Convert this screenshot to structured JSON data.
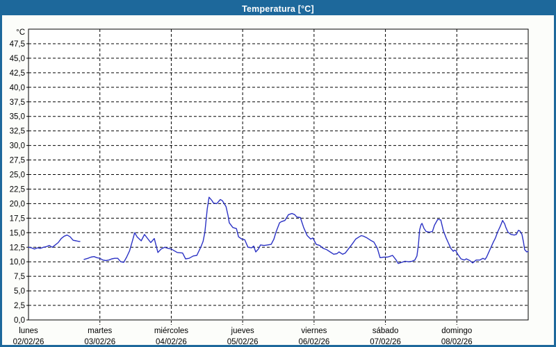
{
  "window": {
    "title": "Temperatura [°C]"
  },
  "colors": {
    "titlebar_bg": "#1D689B",
    "titlebar_text": "#FFFFFF",
    "frame": "#1D689B",
    "content_bg": "#FCFDFA",
    "plot_bg": "#FFFFFF",
    "plot_border": "#000000",
    "grid": "#000000",
    "tick_label": "#000000",
    "series_line": "#2A31C4"
  },
  "chart_data": {
    "type": "line",
    "title": "Temperatura [°C]",
    "y_axis": {
      "unit_label": "°C",
      "min": 0,
      "max": 50,
      "tick_step": 2.5,
      "tick_labels": [
        "0,0",
        "2,5",
        "5,0",
        "7,5",
        "10,0",
        "12,5",
        "15,0",
        "17,5",
        "20,0",
        "22,5",
        "25,0",
        "27,5",
        "30,0",
        "32,5",
        "35,0",
        "37,5",
        "40,0",
        "42,5",
        "45,0",
        "47,5"
      ],
      "grid": "dashed"
    },
    "x_axis": {
      "hours_total": 168,
      "hours_per_day": 24,
      "grid": "dashed",
      "days": [
        {
          "name": "lunes",
          "date": "02/02/26"
        },
        {
          "name": "martes",
          "date": "03/02/26"
        },
        {
          "name": "miércoles",
          "date": "04/02/26"
        },
        {
          "name": "jueves",
          "date": "05/02/26"
        },
        {
          "name": "viernes",
          "date": "06/02/26"
        },
        {
          "name": "sábado",
          "date": "07/02/26"
        },
        {
          "name": "domingo",
          "date": "08/02/26"
        }
      ]
    },
    "series": [
      {
        "name": "Temperatura",
        "unit": "°C",
        "color": "#2A31C4",
        "segments": [
          [
            [
              0,
              12.5
            ],
            [
              1,
              12.4
            ],
            [
              2,
              12.2
            ],
            [
              3,
              12.4
            ],
            [
              4,
              12.3
            ],
            [
              5,
              12.5
            ],
            [
              6,
              12.6
            ],
            [
              7,
              12.8
            ],
            [
              8,
              12.5
            ],
            [
              9,
              12.9
            ],
            [
              10,
              13.3
            ],
            [
              11,
              14.0
            ],
            [
              12,
              14.4
            ],
            [
              13,
              14.6
            ],
            [
              14,
              14.3
            ],
            [
              15,
              13.7
            ],
            [
              16,
              13.6
            ],
            [
              17,
              13.5
            ],
            [
              17.3,
              13.5
            ]
          ],
          [
            [
              18.7,
              10.4
            ],
            [
              20,
              10.6
            ],
            [
              21,
              10.8
            ],
            [
              22,
              10.9
            ],
            [
              23,
              10.7
            ],
            [
              24,
              10.6
            ],
            [
              25,
              10.3
            ],
            [
              26,
              10.2
            ],
            [
              27,
              10.3
            ],
            [
              28,
              10.5
            ],
            [
              29,
              10.6
            ],
            [
              30,
              10.6
            ],
            [
              31,
              10.0
            ],
            [
              32,
              9.9
            ],
            [
              33,
              10.8
            ],
            [
              34,
              11.9
            ],
            [
              35,
              13.7
            ],
            [
              35.7,
              15.0
            ],
            [
              36.5,
              14.3
            ],
            [
              37.9,
              13.6
            ],
            [
              39,
              14.7
            ],
            [
              40.2,
              13.9
            ],
            [
              41.1,
              13.3
            ],
            [
              42.3,
              14.0
            ],
            [
              43.5,
              11.6
            ],
            [
              44.6,
              12.2
            ],
            [
              45.8,
              12.5
            ],
            [
              47,
              12.3
            ],
            [
              48,
              12.2
            ],
            [
              50,
              11.6
            ],
            [
              51.8,
              11.5
            ],
            [
              52.8,
              10.5
            ],
            [
              54,
              10.6
            ],
            [
              55.4,
              11.0
            ],
            [
              56.6,
              11.1
            ],
            [
              58,
              12.6
            ],
            [
              58.7,
              13.5
            ],
            [
              59.3,
              15.1
            ],
            [
              59.7,
              17.1
            ],
            [
              60.1,
              19.1
            ],
            [
              60.4,
              20.1
            ],
            [
              60.7,
              21.1
            ],
            [
              61.7,
              20.5
            ],
            [
              62.2,
              20.1
            ],
            [
              63.3,
              20.0
            ],
            [
              64.5,
              20.7
            ],
            [
              65.2,
              20.5
            ],
            [
              66.4,
              19.5
            ],
            [
              67.1,
              17.9
            ],
            [
              67.5,
              16.7
            ],
            [
              68.7,
              15.9
            ],
            [
              69.9,
              15.7
            ],
            [
              70.6,
              14.3
            ],
            [
              71.7,
              13.9
            ],
            [
              72.7,
              13.8
            ],
            [
              73.8,
              12.5
            ],
            [
              75,
              12.4
            ],
            [
              75.7,
              12.7
            ],
            [
              76.4,
              11.7
            ],
            [
              77.3,
              12.2
            ],
            [
              78,
              12.9
            ],
            [
              79.2,
              12.8
            ],
            [
              80.4,
              12.9
            ],
            [
              81.6,
              13.0
            ],
            [
              82.5,
              13.9
            ],
            [
              83.2,
              15.1
            ],
            [
              84.4,
              16.7
            ],
            [
              85,
              16.9
            ],
            [
              86.2,
              17.1
            ],
            [
              87.4,
              18.1
            ],
            [
              88.6,
              18.3
            ],
            [
              89.5,
              18.1
            ],
            [
              90.2,
              17.7
            ],
            [
              91.4,
              17.6
            ],
            [
              92.5,
              15.9
            ],
            [
              93.7,
              14.5
            ],
            [
              94.9,
              13.9
            ],
            [
              95.6,
              14.1
            ],
            [
              96.7,
              13.0
            ],
            [
              97.9,
              12.8
            ],
            [
              99.1,
              12.3
            ],
            [
              100.2,
              12.1
            ],
            [
              101.4,
              11.7
            ],
            [
              102.6,
              11.3
            ],
            [
              103.7,
              11.4
            ],
            [
              104.4,
              11.7
            ],
            [
              105.6,
              11.3
            ],
            [
              106.5,
              11.5
            ],
            [
              107.7,
              12.3
            ],
            [
              108.9,
              13.1
            ],
            [
              110,
              13.9
            ],
            [
              111.2,
              14.3
            ],
            [
              111.9,
              14.5
            ],
            [
              112.6,
              14.4
            ],
            [
              113.8,
              14.1
            ],
            [
              115,
              13.7
            ],
            [
              116.1,
              13.4
            ],
            [
              117.3,
              12.3
            ],
            [
              118.2,
              10.7
            ],
            [
              119.4,
              10.8
            ],
            [
              120.6,
              10.8
            ],
            [
              121.3,
              10.9
            ],
            [
              122.4,
              11.1
            ],
            [
              123.6,
              10.3
            ],
            [
              124.3,
              9.7
            ],
            [
              125.5,
              9.9
            ],
            [
              126.6,
              10.1
            ],
            [
              127.8,
              10.0
            ],
            [
              129,
              10.1
            ],
            [
              129.9,
              10.3
            ],
            [
              130.6,
              11.0
            ],
            [
              131.1,
              13.0
            ],
            [
              131.5,
              15.5
            ],
            [
              132,
              16.4
            ],
            [
              132.3,
              16.6
            ],
            [
              133,
              15.7
            ],
            [
              133.7,
              15.2
            ],
            [
              134.8,
              15.1
            ],
            [
              135.8,
              15.2
            ],
            [
              136.5,
              16.3
            ],
            [
              137.6,
              17.3
            ],
            [
              138.6,
              17.2
            ],
            [
              139.5,
              15.3
            ],
            [
              140.4,
              14.1
            ],
            [
              141.1,
              13.3
            ],
            [
              142,
              12.3
            ],
            [
              142.8,
              11.8
            ],
            [
              143.2,
              12.0
            ],
            [
              143.7,
              11.9
            ],
            [
              144.2,
              11.4
            ],
            [
              145.4,
              10.5
            ],
            [
              146.5,
              10.3
            ],
            [
              147.2,
              10.5
            ],
            [
              148.4,
              10.2
            ],
            [
              149.3,
              9.8
            ],
            [
              150.5,
              10.3
            ],
            [
              151.7,
              10.3
            ],
            [
              152.8,
              10.6
            ],
            [
              153.5,
              10.4
            ],
            [
              154,
              10.8
            ],
            [
              154.7,
              11.6
            ],
            [
              155.4,
              12.4
            ],
            [
              156.3,
              13.4
            ],
            [
              157,
              14.1
            ],
            [
              157.7,
              15.1
            ],
            [
              158.6,
              16.1
            ],
            [
              159.4,
              17.1
            ],
            [
              160.1,
              16.5
            ],
            [
              160.5,
              15.9
            ],
            [
              161.2,
              15.1
            ],
            [
              162.2,
              14.7
            ],
            [
              163.3,
              14.6
            ],
            [
              164,
              14.7
            ],
            [
              164.7,
              15.4
            ],
            [
              165.2,
              15.3
            ],
            [
              165.9,
              14.7
            ],
            [
              166.4,
              13.4
            ],
            [
              166.8,
              12.1
            ],
            [
              167.5,
              11.7
            ],
            [
              168,
              11.8
            ]
          ]
        ]
      }
    ]
  }
}
